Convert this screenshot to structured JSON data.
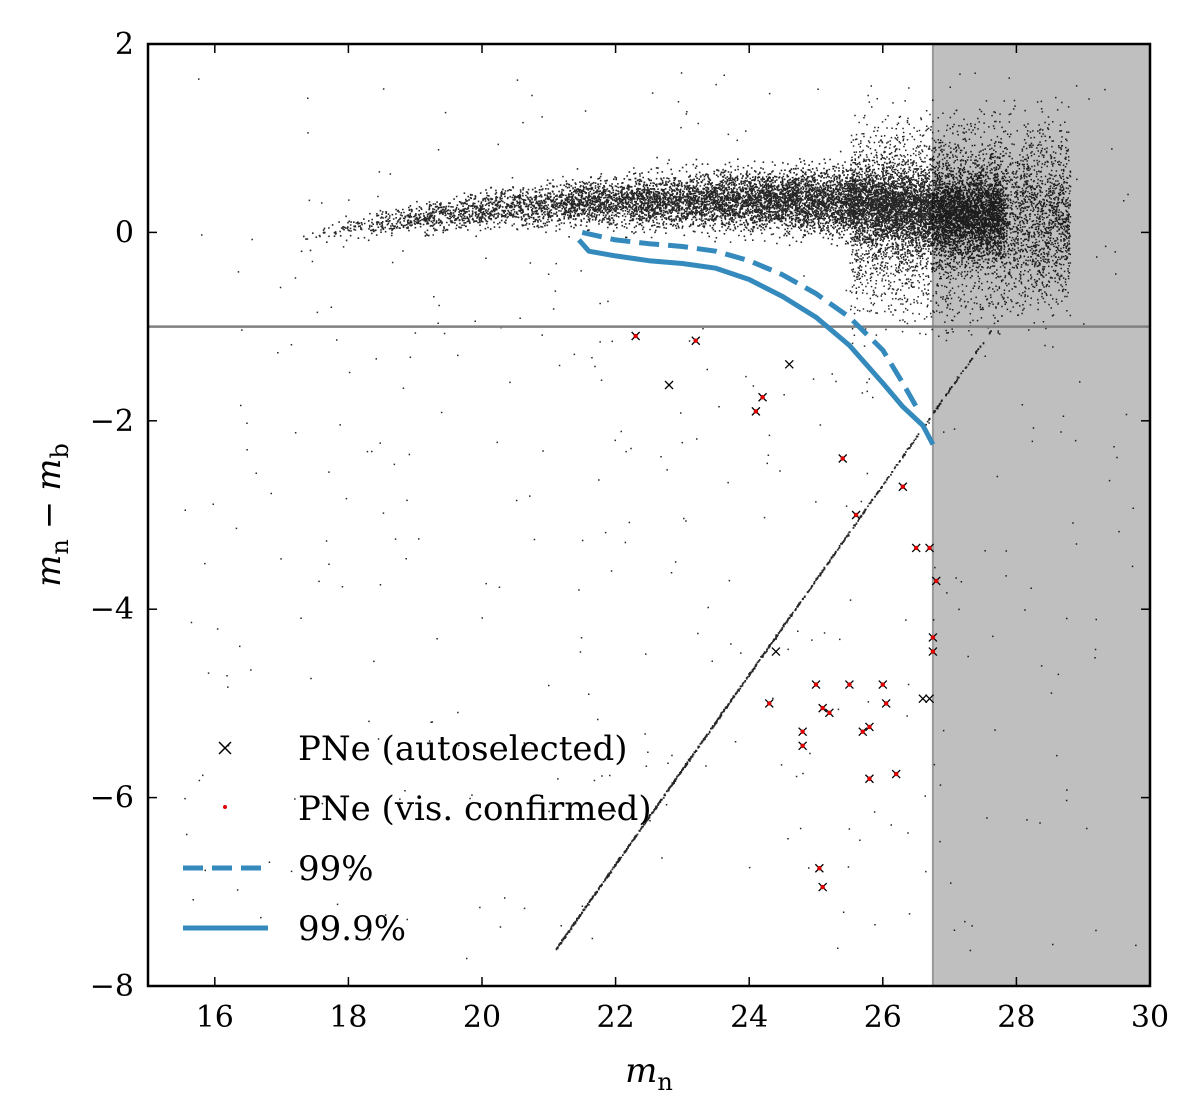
{
  "chart_data": {
    "type": "scatter",
    "title": "",
    "xlabel": {
      "main": "m",
      "sub": "n"
    },
    "ylabel": {
      "m1": "m",
      "sub1": "n",
      "minus": "−",
      "m2": "m",
      "sub2": "b"
    },
    "xlim": [
      15,
      30
    ],
    "ylim": [
      -8,
      2
    ],
    "xticks": [
      16,
      18,
      20,
      22,
      24,
      26,
      28,
      30
    ],
    "yticks": [
      -8,
      -6,
      -4,
      -2,
      0,
      2
    ],
    "ytick_labels": [
      "−8",
      "−6",
      "−4",
      "−2",
      "0",
      "2"
    ],
    "shaded_region": {
      "x_from": 26.75,
      "x_to": 30,
      "color": "#bfbfbf",
      "edge_color": "#999999"
    },
    "hline": {
      "y": -1.0,
      "color": "#808080"
    },
    "background_sources": {
      "name": "All sources",
      "color": "#000000",
      "ridge": [
        [
          17.2,
          -0.1
        ],
        [
          18,
          0.05
        ],
        [
          19,
          0.15
        ],
        [
          20,
          0.25
        ],
        [
          21,
          0.3
        ],
        [
          22,
          0.35
        ],
        [
          23,
          0.35
        ],
        [
          24,
          0.35
        ],
        [
          25,
          0.35
        ],
        [
          26,
          0.3
        ],
        [
          26.5,
          0.25
        ],
        [
          27,
          0.2
        ]
      ],
      "detection_limit_line": {
        "x_from": 21.1,
        "y_from": -7.6,
        "x_to": 27.8,
        "y_to": -0.85
      }
    },
    "series": [
      {
        "name": "PNe (autoselected)",
        "marker": "x",
        "color": "#000000",
        "points": [
          [
            22.3,
            -1.1
          ],
          [
            22.8,
            -1.62
          ],
          [
            23.2,
            -1.15
          ],
          [
            24.1,
            -1.9
          ],
          [
            24.2,
            -1.75
          ],
          [
            24.3,
            -5.0
          ],
          [
            24.4,
            -4.45
          ],
          [
            24.6,
            -1.4
          ],
          [
            24.8,
            -5.3
          ],
          [
            24.8,
            -5.45
          ],
          [
            25.0,
            -4.8
          ],
          [
            25.05,
            -6.75
          ],
          [
            25.1,
            -5.05
          ],
          [
            25.1,
            -6.95
          ],
          [
            25.2,
            -5.1
          ],
          [
            25.4,
            -2.4
          ],
          [
            25.5,
            -4.8
          ],
          [
            25.6,
            -3.0
          ],
          [
            25.7,
            -5.3
          ],
          [
            25.8,
            -5.8
          ],
          [
            25.8,
            -5.25
          ],
          [
            26.0,
            -4.8
          ],
          [
            26.05,
            -5.0
          ],
          [
            26.2,
            -5.75
          ],
          [
            26.3,
            -2.7
          ],
          [
            26.5,
            -3.35
          ],
          [
            26.6,
            -4.95
          ],
          [
            26.7,
            -3.35
          ],
          [
            26.7,
            -4.95
          ],
          [
            26.75,
            -4.3
          ],
          [
            26.75,
            -4.45
          ],
          [
            26.8,
            -3.7
          ]
        ]
      },
      {
        "name": "PNe (vis. confirmed)",
        "marker": "dot",
        "color": "#e00000",
        "points": [
          [
            22.3,
            -1.1
          ],
          [
            23.2,
            -1.15
          ],
          [
            24.1,
            -1.9
          ],
          [
            24.2,
            -1.75
          ],
          [
            24.3,
            -5.0
          ],
          [
            24.8,
            -5.3
          ],
          [
            24.8,
            -5.45
          ],
          [
            25.0,
            -4.8
          ],
          [
            25.05,
            -6.75
          ],
          [
            25.1,
            -5.05
          ],
          [
            25.1,
            -6.95
          ],
          [
            25.2,
            -5.1
          ],
          [
            25.4,
            -2.4
          ],
          [
            25.5,
            -4.8
          ],
          [
            25.6,
            -3.0
          ],
          [
            25.7,
            -5.3
          ],
          [
            25.8,
            -5.8
          ],
          [
            25.8,
            -5.25
          ],
          [
            26.0,
            -4.8
          ],
          [
            26.05,
            -5.0
          ],
          [
            26.2,
            -5.75
          ],
          [
            26.3,
            -2.7
          ],
          [
            26.5,
            -3.35
          ],
          [
            26.7,
            -3.35
          ],
          [
            26.75,
            -4.3
          ],
          [
            26.75,
            -4.45
          ],
          [
            26.8,
            -3.7
          ]
        ]
      },
      {
        "name": "99%",
        "style": "dashed",
        "color": "#348abd",
        "points": [
          [
            21.5,
            0.0
          ],
          [
            22.0,
            -0.08
          ],
          [
            22.5,
            -0.12
          ],
          [
            23.0,
            -0.15
          ],
          [
            23.5,
            -0.2
          ],
          [
            24.0,
            -0.3
          ],
          [
            24.5,
            -0.45
          ],
          [
            25.0,
            -0.65
          ],
          [
            25.5,
            -0.9
          ],
          [
            26.0,
            -1.25
          ],
          [
            26.3,
            -1.6
          ],
          [
            26.5,
            -1.85
          ]
        ]
      },
      {
        "name": "99.9%",
        "style": "solid",
        "color": "#348abd",
        "points": [
          [
            21.45,
            -0.08
          ],
          [
            21.6,
            -0.2
          ],
          [
            22.0,
            -0.25
          ],
          [
            22.5,
            -0.3
          ],
          [
            23.0,
            -0.33
          ],
          [
            23.5,
            -0.38
          ],
          [
            24.0,
            -0.5
          ],
          [
            24.5,
            -0.68
          ],
          [
            25.0,
            -0.9
          ],
          [
            25.5,
            -1.2
          ],
          [
            26.0,
            -1.6
          ],
          [
            26.3,
            -1.85
          ],
          [
            26.6,
            -2.05
          ],
          [
            26.75,
            -2.25
          ]
        ]
      }
    ],
    "legend": {
      "placement": "lower-left",
      "entries": [
        "PNe (autoselected)",
        "PNe (vis. confirmed)",
        "99%",
        "99.9%"
      ]
    }
  }
}
